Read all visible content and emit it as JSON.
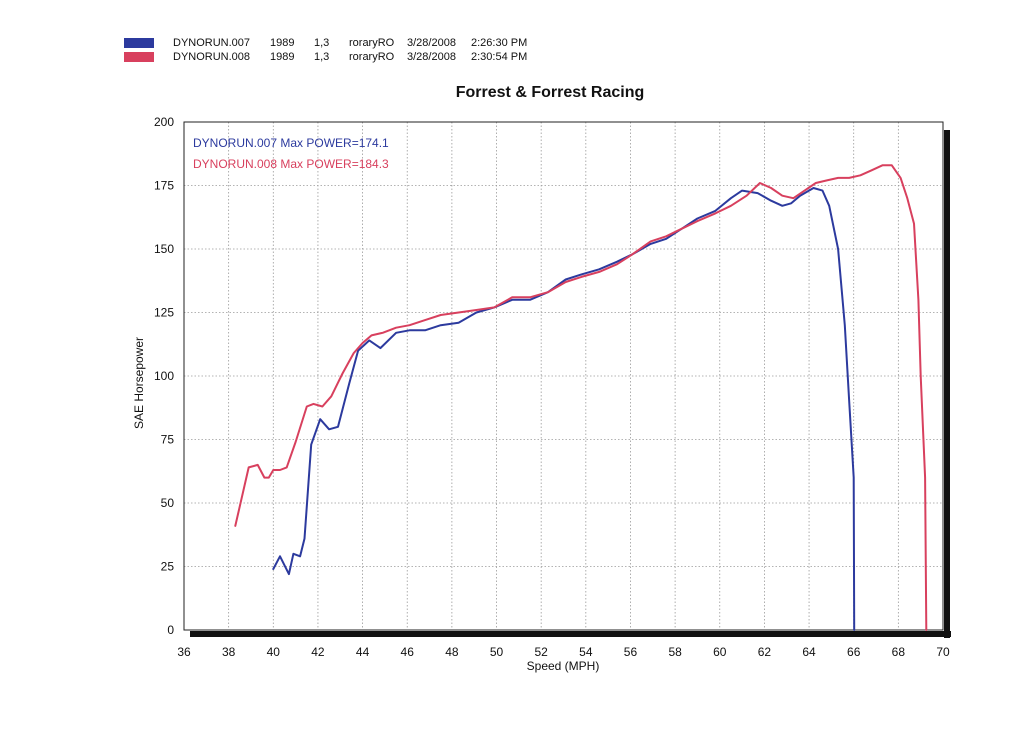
{
  "legend": [
    {
      "name": "DYNORUN.007",
      "year": "1989",
      "version": "1,3",
      "user": "roraryRO",
      "date": "3/28/2008",
      "time": "2:26:30 PM",
      "color": "#2c3a9e"
    },
    {
      "name": "DYNORUN.008",
      "year": "1989",
      "version": "1,3",
      "user": "roraryRO",
      "date": "3/28/2008",
      "time": "2:30:54 PM",
      "color": "#d8405e"
    }
  ],
  "chart_data": {
    "type": "line",
    "title": "Forrest & Forrest Racing",
    "xlabel": "Speed (MPH)",
    "ylabel": "SAE Horsepower",
    "xlim": [
      36,
      70
    ],
    "ylim": [
      0,
      200
    ],
    "x_ticks": [
      36,
      38,
      40,
      42,
      44,
      46,
      48,
      50,
      52,
      54,
      56,
      58,
      60,
      62,
      64,
      66,
      68,
      70
    ],
    "y_ticks": [
      0,
      25,
      50,
      75,
      100,
      125,
      150,
      175,
      200
    ],
    "grid": true,
    "annotations": [
      {
        "text": "DYNORUN.007  Max POWER=174.1",
        "color": "#2c3a9e"
      },
      {
        "text": "DYNORUN.008  Max POWER=184.3",
        "color": "#d8405e"
      }
    ],
    "series": [
      {
        "name": "DYNORUN.007",
        "color": "#2c3a9e",
        "x": [
          40.0,
          40.3,
          40.7,
          40.9,
          41.2,
          41.4,
          41.7,
          42.1,
          42.5,
          42.9,
          43.4,
          43.8,
          44.3,
          44.8,
          45.5,
          46.1,
          46.8,
          47.5,
          48.3,
          49.1,
          49.9,
          50.7,
          51.5,
          52.3,
          53.1,
          53.8,
          54.6,
          55.4,
          56.1,
          56.9,
          57.6,
          58.3,
          59.0,
          59.8,
          60.5,
          61.0,
          61.7,
          62.3,
          62.8,
          63.2,
          63.6,
          64.2,
          64.6,
          64.9,
          65.3,
          65.6,
          65.8,
          66.0,
          66.02
        ],
        "y": [
          24,
          29,
          22,
          30,
          29,
          36,
          73,
          83,
          79,
          80,
          97,
          110,
          114,
          111,
          117,
          118,
          118,
          120,
          121,
          125,
          127,
          130,
          130,
          133,
          138,
          140,
          142,
          145,
          148,
          152,
          154,
          158,
          162,
          165,
          170,
          173,
          172,
          169,
          167,
          168,
          171,
          174,
          173,
          167,
          150,
          120,
          90,
          60,
          0
        ]
      },
      {
        "name": "DYNORUN.008",
        "color": "#d8405e",
        "x": [
          38.3,
          38.9,
          39.3,
          39.6,
          39.8,
          40.0,
          40.3,
          40.6,
          41.0,
          41.5,
          41.8,
          42.2,
          42.6,
          43.1,
          43.6,
          44.0,
          44.4,
          44.9,
          45.5,
          46.1,
          46.8,
          47.5,
          48.3,
          49.1,
          49.9,
          50.7,
          51.5,
          52.3,
          53.1,
          53.8,
          54.6,
          55.4,
          56.1,
          56.9,
          57.6,
          58.3,
          59.0,
          59.8,
          60.5,
          61.2,
          61.8,
          62.3,
          62.8,
          63.3,
          63.8,
          64.3,
          64.8,
          65.3,
          65.8,
          66.3,
          66.8,
          67.3,
          67.7,
          68.1,
          68.4,
          68.7,
          68.9,
          69.0,
          69.2,
          69.25
        ],
        "y": [
          41,
          64,
          65,
          60,
          60,
          63,
          63,
          64,
          74,
          88,
          89,
          88,
          92,
          101,
          109,
          113,
          116,
          117,
          119,
          120,
          122,
          124,
          125,
          126,
          127,
          131,
          131,
          133,
          137,
          139,
          141,
          144,
          148,
          153,
          155,
          158,
          161,
          164,
          167,
          171,
          176,
          174,
          171,
          170,
          173,
          176,
          177,
          178,
          178,
          179,
          181,
          183,
          183,
          178,
          170,
          160,
          130,
          100,
          60,
          0
        ]
      }
    ]
  }
}
